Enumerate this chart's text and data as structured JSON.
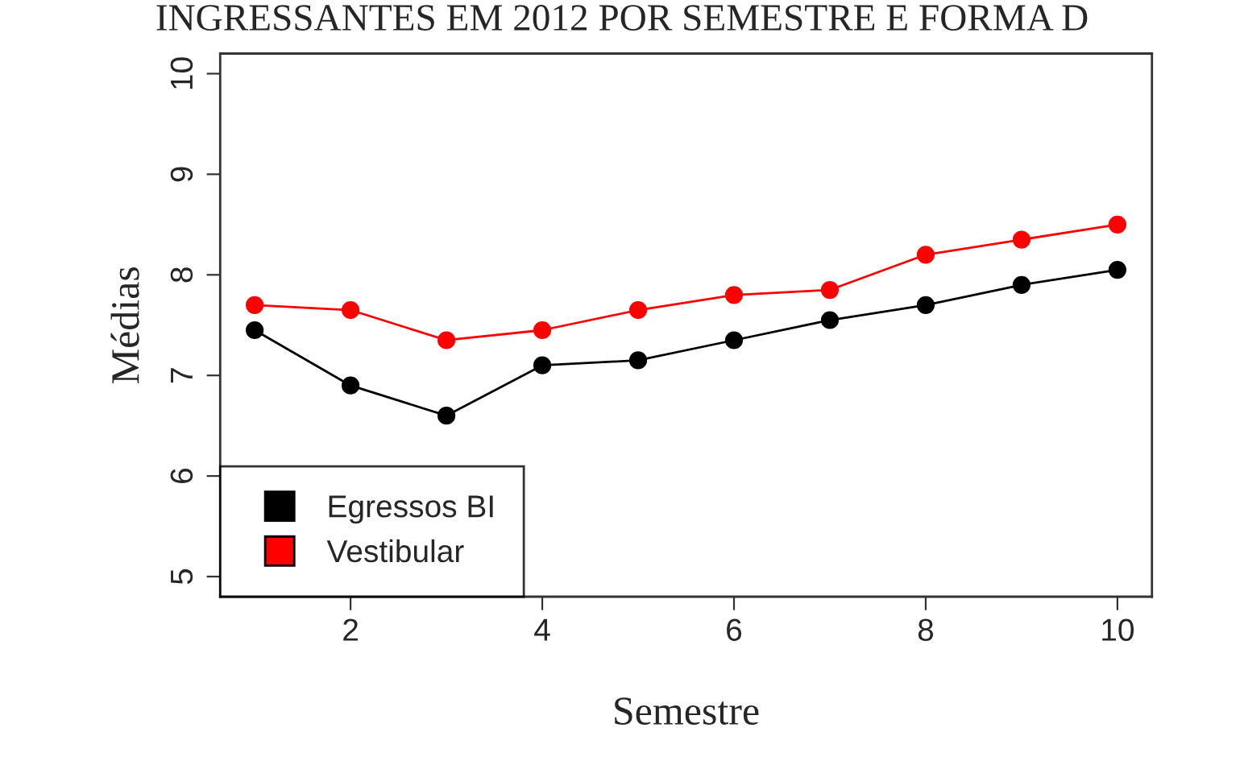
{
  "chart_data": {
    "type": "line",
    "title": "INGRESSANTES EM 2012 POR SEMESTRE E FORMA D",
    "xlabel": "Semestre",
    "ylabel": "Médias",
    "x": [
      1,
      2,
      3,
      4,
      5,
      6,
      7,
      8,
      9,
      10
    ],
    "series": [
      {
        "name": "Egressos BI",
        "color": "#000000",
        "values": [
          7.45,
          6.9,
          6.6,
          7.1,
          7.15,
          7.35,
          7.55,
          7.7,
          7.9,
          8.05
        ]
      },
      {
        "name": "Vestibular",
        "color": "#ff0000",
        "values": [
          7.7,
          7.65,
          7.35,
          7.45,
          7.65,
          7.8,
          7.85,
          8.2,
          8.35,
          8.5
        ]
      }
    ],
    "xlim": [
      0.64,
      10.36
    ],
    "ylim": [
      4.8,
      10.2
    ],
    "xticks": [
      2,
      4,
      6,
      8,
      10
    ],
    "yticks": [
      5,
      6,
      7,
      8,
      9,
      10
    ],
    "grid": false,
    "legend": "bottom left",
    "marker": "circle",
    "line_style": "solid"
  }
}
